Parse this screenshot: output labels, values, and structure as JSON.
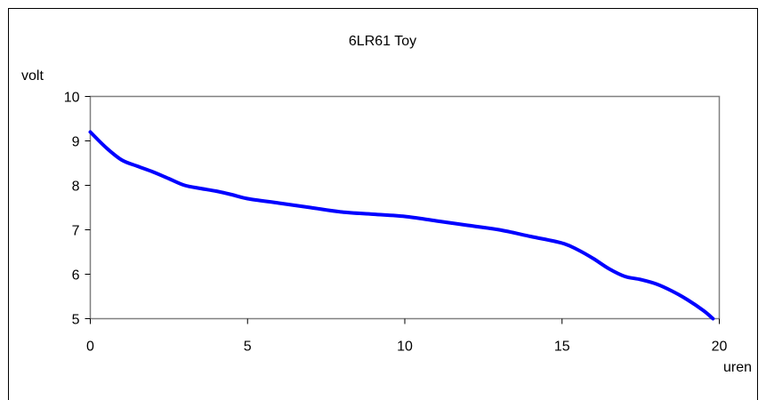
{
  "chart_data": {
    "type": "line",
    "title": "6LR61  Toy",
    "xlabel": "uren",
    "ylabel": "volt",
    "xlim": [
      0,
      20
    ],
    "ylim": [
      5,
      10
    ],
    "x_ticks": [
      0,
      5,
      10,
      15,
      20
    ],
    "y_ticks": [
      5,
      6,
      7,
      8,
      9,
      10
    ],
    "grid": false,
    "legend": "none",
    "line_color": "#0000ff",
    "series": [
      {
        "x": [
          0,
          0.5,
          1,
          1.5,
          2,
          2.5,
          3,
          3.5,
          4,
          4.5,
          5,
          6,
          7,
          8,
          9,
          10,
          11,
          12,
          13,
          14,
          15,
          15.5,
          16,
          16.5,
          17,
          17.5,
          18,
          18.5,
          19,
          19.5,
          19.8
        ],
        "y": [
          9.2,
          8.85,
          8.57,
          8.43,
          8.3,
          8.15,
          8.0,
          7.93,
          7.87,
          7.79,
          7.7,
          7.6,
          7.5,
          7.4,
          7.35,
          7.3,
          7.2,
          7.1,
          7.0,
          6.85,
          6.7,
          6.55,
          6.35,
          6.12,
          5.95,
          5.88,
          5.78,
          5.62,
          5.42,
          5.18,
          5.0
        ]
      }
    ]
  }
}
